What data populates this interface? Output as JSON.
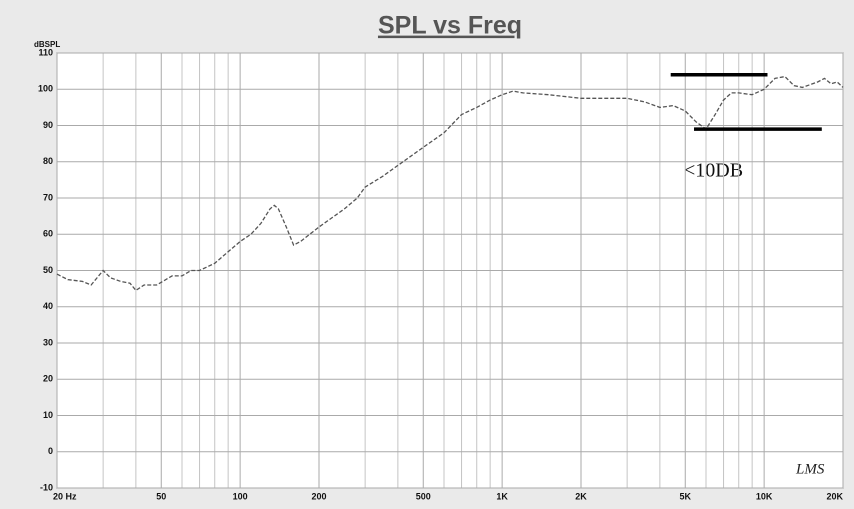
{
  "chart_data": {
    "type": "line",
    "title": "SPL vs Freq",
    "y_label": "dBSPL",
    "annotation": "<10DB",
    "watermark": "LMS",
    "log_x": true,
    "grid": true,
    "xlim": [
      20,
      20000
    ],
    "ylim": [
      -10,
      110
    ],
    "xticks": [
      {
        "value": 20,
        "label": "20  Hz"
      },
      50,
      100,
      200,
      500,
      {
        "value": 1000,
        "label": "1K"
      },
      {
        "value": 2000,
        "label": "2K"
      },
      {
        "value": 5000,
        "label": "5K"
      },
      {
        "value": 10000,
        "label": "10K"
      },
      {
        "value": 20000,
        "label": "20K"
      }
    ],
    "x_minor_ticks": [
      30,
      40,
      60,
      70,
      80,
      90,
      300,
      400,
      600,
      700,
      800,
      900,
      3000,
      4000,
      6000,
      7000,
      8000,
      9000
    ],
    "yticks": [
      -10,
      0,
      10,
      20,
      30,
      40,
      50,
      60,
      70,
      80,
      90,
      100,
      110
    ],
    "series": [
      {
        "name": "SPL",
        "color": "#555555",
        "x": [
          20,
          22,
          25,
          27,
          30,
          32,
          35,
          38,
          40,
          43,
          48,
          55,
          60,
          65,
          70,
          80,
          100,
          110,
          120,
          130,
          135,
          140,
          150,
          160,
          170,
          200,
          250,
          280,
          300,
          350,
          400,
          500,
          600,
          700,
          800,
          900,
          1000,
          1100,
          1200,
          1500,
          2000,
          3000,
          3500,
          4000,
          4500,
          5000,
          5500,
          6000,
          6500,
          7000,
          7500,
          8000,
          9000,
          10000,
          11000,
          12000,
          13000,
          14000,
          16000,
          17000,
          18000,
          19000,
          20000
        ],
        "values": [
          49,
          47.5,
          47,
          46,
          50,
          48,
          47,
          46.5,
          44.5,
          46,
          46,
          48.5,
          48.5,
          50,
          50,
          52,
          58,
          60,
          63,
          67,
          68,
          67,
          62,
          57,
          58,
          62,
          67,
          70,
          73,
          76,
          79,
          84,
          88,
          93,
          95,
          97,
          98.5,
          99.5,
          99,
          98.5,
          97.5,
          97.5,
          96.5,
          95,
          95.5,
          94,
          91,
          89,
          93,
          97,
          99,
          99,
          98.5,
          100,
          103,
          103.5,
          101,
          100.5,
          102,
          103,
          101.5,
          102,
          100.5
        ]
      }
    ],
    "reference_lines": [
      {
        "x": [
          4400,
          10300
        ],
        "y": 104
      },
      {
        "x": [
          5400,
          16600
        ],
        "y": 89
      }
    ]
  }
}
